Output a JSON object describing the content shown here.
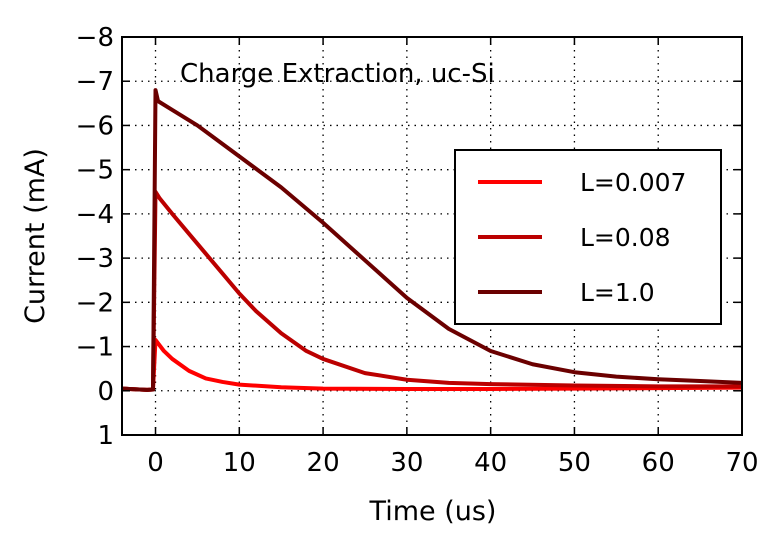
{
  "chart_data": {
    "type": "line",
    "title": "Charge Extraction, uc-Si",
    "xlabel": "Time (us)",
    "ylabel": "Current (mA)",
    "xlim": [
      -4,
      70
    ],
    "ylim": [
      1,
      -8
    ],
    "y_inverted": true,
    "grid": true,
    "grid_style": "dotted",
    "legend_position": "center-right",
    "x_ticks": [
      0,
      10,
      20,
      30,
      40,
      50,
      60,
      70
    ],
    "x_tick_labels": [
      "0",
      "10",
      "20",
      "30",
      "40",
      "50",
      "60",
      "70"
    ],
    "y_ticks": [
      -8,
      -7,
      -6,
      -5,
      -4,
      -3,
      -2,
      -1,
      0,
      1
    ],
    "y_tick_labels": [
      "−8",
      "−7",
      "−6",
      "−5",
      "−4",
      "−3",
      "−2",
      "−1",
      "0",
      "1"
    ],
    "series": [
      {
        "name": "L=0.007",
        "color": "#ff0000",
        "points": [
          [
            -4,
            -0.05
          ],
          [
            -1,
            -0.02
          ],
          [
            -0.3,
            -0.03
          ],
          [
            0,
            -1.15
          ],
          [
            1,
            -0.9
          ],
          [
            2,
            -0.72
          ],
          [
            4,
            -0.45
          ],
          [
            6,
            -0.28
          ],
          [
            8,
            -0.2
          ],
          [
            10,
            -0.14
          ],
          [
            15,
            -0.08
          ],
          [
            20,
            -0.05
          ],
          [
            30,
            -0.04
          ],
          [
            40,
            -0.04
          ],
          [
            50,
            -0.05
          ],
          [
            60,
            -0.06
          ],
          [
            70,
            -0.07
          ]
        ]
      },
      {
        "name": "L=0.08",
        "color": "#bb0000",
        "points": [
          [
            -4,
            -0.05
          ],
          [
            -1,
            -0.02
          ],
          [
            -0.3,
            -0.03
          ],
          [
            0,
            -4.5
          ],
          [
            0.5,
            -4.35
          ],
          [
            2,
            -4.0
          ],
          [
            4,
            -3.55
          ],
          [
            6,
            -3.1
          ],
          [
            8,
            -2.65
          ],
          [
            10,
            -2.2
          ],
          [
            12,
            -1.8
          ],
          [
            15,
            -1.3
          ],
          [
            18,
            -0.9
          ],
          [
            20,
            -0.72
          ],
          [
            25,
            -0.4
          ],
          [
            30,
            -0.25
          ],
          [
            35,
            -0.18
          ],
          [
            40,
            -0.15
          ],
          [
            50,
            -0.12
          ],
          [
            60,
            -0.1
          ],
          [
            70,
            -0.1
          ]
        ]
      },
      {
        "name": "L=1.0",
        "color": "#6b0000",
        "points": [
          [
            -4,
            -0.05
          ],
          [
            -1,
            -0.02
          ],
          [
            -0.3,
            -0.03
          ],
          [
            0,
            -6.8
          ],
          [
            0.3,
            -6.55
          ],
          [
            2,
            -6.35
          ],
          [
            5,
            -6.0
          ],
          [
            10,
            -5.3
          ],
          [
            15,
            -4.6
          ],
          [
            20,
            -3.8
          ],
          [
            25,
            -2.95
          ],
          [
            30,
            -2.1
          ],
          [
            35,
            -1.4
          ],
          [
            40,
            -0.9
          ],
          [
            45,
            -0.6
          ],
          [
            50,
            -0.42
          ],
          [
            55,
            -0.32
          ],
          [
            60,
            -0.26
          ],
          [
            65,
            -0.22
          ],
          [
            70,
            -0.18
          ]
        ]
      }
    ]
  }
}
